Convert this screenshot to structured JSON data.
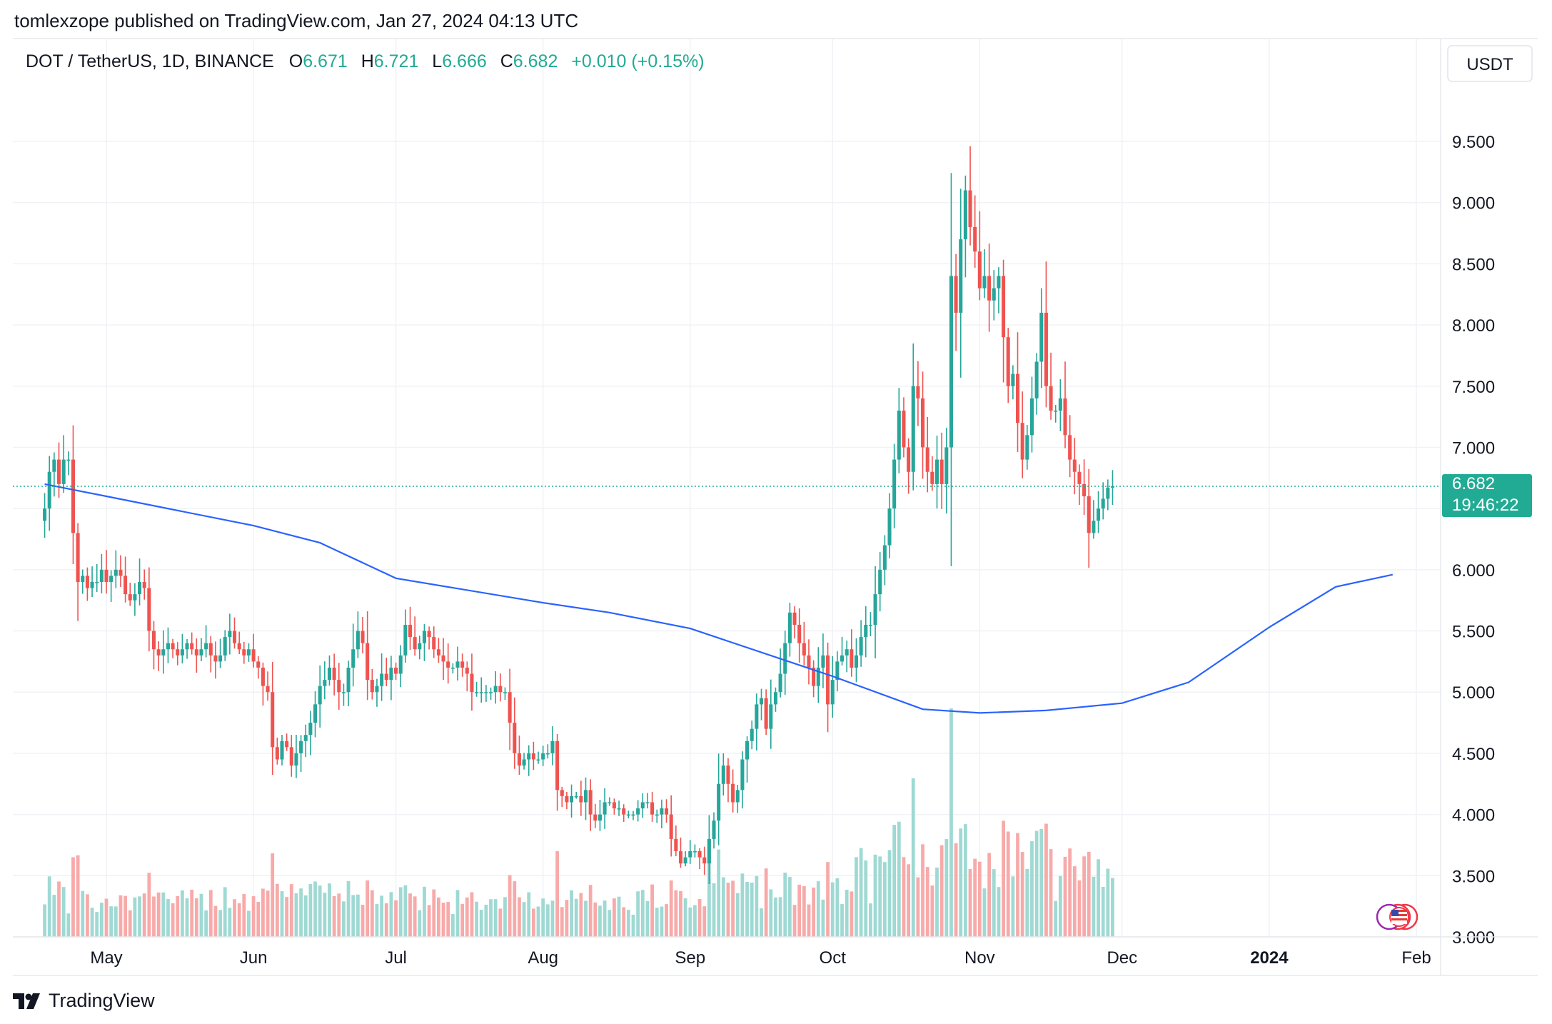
{
  "header": {
    "publisher_line": "tomlexzope published on TradingView.com, Jan 27, 2024 04:13 UTC"
  },
  "legend": {
    "symbol": "DOT / TetherUS, 1D, BINANCE",
    "o_label": "O",
    "o_value": "6.671",
    "h_label": "H",
    "h_value": "6.721",
    "l_label": "L",
    "l_value": "6.666",
    "c_label": "C",
    "c_value": "6.682",
    "change": "+0.010 (+0.15%)"
  },
  "currency_button": "USDT",
  "price_tag": {
    "price": "6.682",
    "countdown": "19:46:22"
  },
  "footer": {
    "brand": "TradingView"
  },
  "colors": {
    "up": "#26a69a",
    "down": "#ef5350",
    "ma": "#2962ff",
    "up_vol": "#9fd9d3",
    "down_vol": "#f7aaa9",
    "tag": "#22ab94"
  },
  "chart_data": {
    "type": "candlestick",
    "title": "DOT / TetherUS, 1D, BINANCE",
    "x_tick_labels": [
      "May",
      "Jun",
      "Jul",
      "Aug",
      "Sep",
      "Oct",
      "Nov",
      "Dec",
      "2024",
      "Feb"
    ],
    "y_tick_labels": [
      "9.500",
      "9.000",
      "8.500",
      "8.000",
      "7.500",
      "7.000",
      "6.500",
      "6.000",
      "5.500",
      "5.000",
      "4.500",
      "4.000",
      "3.500",
      "3.000"
    ],
    "ylim": [
      2.9,
      10.0
    ],
    "last_price": 6.682,
    "series": [
      {
        "name": "price_closes",
        "start_date": "2023-04-18",
        "values": [
          6.5,
          6.8,
          6.9,
          6.7,
          6.9,
          6.9,
          6.3,
          5.9,
          5.95,
          5.85,
          5.9,
          5.9,
          6.0,
          5.9,
          5.95,
          6.0,
          5.95,
          5.8,
          5.75,
          5.8,
          5.9,
          5.85,
          5.5,
          5.35,
          5.3,
          5.35,
          5.4,
          5.35,
          5.3,
          5.35,
          5.4,
          5.35,
          5.3,
          5.35,
          5.4,
          5.3,
          5.25,
          5.3,
          5.45,
          5.5,
          5.4,
          5.35,
          5.3,
          5.35,
          5.25,
          5.2,
          5.05,
          5.0,
          4.55,
          4.45,
          4.6,
          4.55,
          4.4,
          4.5,
          4.6,
          4.65,
          4.75,
          4.9,
          5.05,
          5.1,
          5.2,
          5.1,
          5.0,
          5.0,
          5.2,
          5.35,
          5.5,
          5.4,
          5.1,
          5.0,
          5.05,
          5.15,
          5.1,
          5.2,
          5.15,
          5.3,
          5.55,
          5.45,
          5.35,
          5.4,
          5.5,
          5.45,
          5.35,
          5.3,
          5.25,
          5.2,
          5.2,
          5.25,
          5.2,
          5.15,
          5.0,
          5.0,
          5.0,
          5.0,
          5.0,
          5.05,
          5.0,
          5.0,
          4.75,
          4.5,
          4.4,
          4.45,
          4.5,
          4.45,
          4.45,
          4.5,
          4.5,
          4.6,
          4.2,
          4.15,
          4.1,
          4.15,
          4.15,
          4.1,
          4.2,
          4.0,
          3.95,
          4.0,
          4.1,
          4.1,
          4.05,
          4.05,
          4.0,
          4.0,
          4.0,
          4.05,
          4.1,
          4.1,
          4.0,
          4.0,
          4.05,
          4.0,
          3.8,
          3.7,
          3.6,
          3.65,
          3.7,
          3.7,
          3.65,
          3.6,
          3.8,
          3.95,
          4.25,
          4.4,
          4.25,
          4.1,
          4.2,
          4.45,
          4.6,
          4.7,
          4.9,
          4.95,
          4.7,
          4.9,
          5.0,
          5.15,
          5.4,
          5.65,
          5.55,
          5.4,
          5.3,
          5.2,
          5.05,
          5.2,
          5.3,
          4.9,
          5.1,
          5.25,
          5.3,
          5.35,
          5.2,
          5.3,
          5.45,
          5.55,
          5.55,
          5.8,
          6.0,
          6.2,
          6.5,
          6.9,
          7.3,
          7.0,
          6.8,
          7.5,
          7.4,
          7.0,
          6.8,
          6.7,
          6.9,
          6.7,
          7.0,
          8.4,
          8.1,
          8.7,
          9.1,
          8.8,
          8.6,
          8.3,
          8.4,
          8.2,
          8.3,
          8.4,
          7.9,
          7.5,
          7.6,
          7.2,
          6.9,
          7.1,
          7.4,
          7.7,
          8.1,
          7.5,
          7.3,
          7.3,
          7.4,
          7.1,
          6.9,
          6.8,
          6.7,
          6.6,
          6.3,
          6.4,
          6.5,
          6.58,
          6.671,
          6.682
        ]
      },
      {
        "name": "moving_average",
        "points": [
          {
            "date": "2023-04-18",
            "value": 6.7
          },
          {
            "date": "2023-05-01",
            "value": 6.6
          },
          {
            "date": "2023-06-01",
            "value": 6.36
          },
          {
            "date": "2023-06-15",
            "value": 6.22
          },
          {
            "date": "2023-07-01",
            "value": 5.93
          },
          {
            "date": "2023-08-01",
            "value": 5.73
          },
          {
            "date": "2023-08-15",
            "value": 5.65
          },
          {
            "date": "2023-09-01",
            "value": 5.52
          },
          {
            "date": "2023-10-01",
            "value": 5.13
          },
          {
            "date": "2023-10-20",
            "value": 4.86
          },
          {
            "date": "2023-11-01",
            "value": 4.83
          },
          {
            "date": "2023-11-15",
            "value": 4.85
          },
          {
            "date": "2023-12-01",
            "value": 4.91
          },
          {
            "date": "2023-12-15",
            "value": 5.08
          },
          {
            "date": "2024-01-01",
            "value": 5.53
          },
          {
            "date": "2024-01-15",
            "value": 5.86
          },
          {
            "date": "2024-01-27",
            "value": 5.96
          }
        ]
      }
    ]
  }
}
